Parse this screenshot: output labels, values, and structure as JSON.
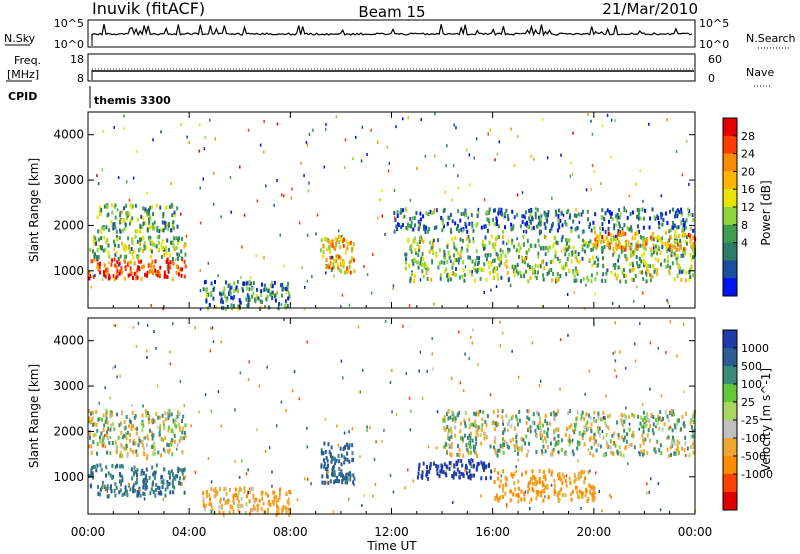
{
  "header": {
    "station": "Inuvik (fitACF)",
    "beam": "Beam 15",
    "date": "21/Mar/2010"
  },
  "panels": {
    "nsky_label": "N.Sky",
    "nsky_ticks": [
      "10^5",
      "10^0"
    ],
    "nsearch_label": "N.Search",
    "nsearch_ticks": [
      "10^5",
      "10^0"
    ],
    "freq_label_1": "Freq.",
    "freq_label_2": "[MHz]",
    "freq_ticks": [
      "18",
      "8"
    ],
    "nave_label": "Nave",
    "nave_ticks": [
      "60",
      "0"
    ],
    "cpid_label": "CPID",
    "cpid_value": "themis 3300"
  },
  "axes": {
    "ylabel": "Slant Range [km]",
    "yticks": [
      "4000",
      "3000",
      "2000",
      "1000"
    ],
    "xticks": [
      "00:00",
      "04:00",
      "08:00",
      "12:00",
      "16:00",
      "20:00",
      "00:00"
    ],
    "xlabel": "Time UT"
  },
  "colorbars": {
    "power": {
      "label": "Power [dB]",
      "ticks": [
        "28",
        "24",
        "20",
        "16",
        "12",
        "8",
        "4"
      ],
      "colors": [
        "#e40000",
        "#ff3b00",
        "#ff8c00",
        "#ffb400",
        "#e8e400",
        "#8ed43c",
        "#3e9d4f",
        "#2d7c67",
        "#1a4f9f",
        "#0014f0"
      ]
    },
    "velocity": {
      "label": "Velocity [m s^-1]",
      "ticks": [
        "1000",
        "500",
        "100",
        "25",
        "-25",
        "-100",
        "-500",
        "-1000"
      ],
      "colors": [
        "#1f3ca8",
        "#2b5d93",
        "#3a8a7a",
        "#62c83a",
        "#a8d860",
        "#c0c0c0",
        "#f0a830",
        "#ff8c00",
        "#ff4000",
        "#e00000"
      ]
    }
  },
  "chart_data": {
    "type": "heatmap",
    "title": "Inuvik (fitACF) Beam 15 21/Mar/2010",
    "xlabel": "Time UT",
    "ylabel": "Slant Range [km]",
    "x_range": [
      "00:00",
      "24:00"
    ],
    "ylim": [
      180,
      4500
    ],
    "panels": [
      {
        "name": "Power [dB]",
        "colorbar_range": [
          0,
          30
        ],
        "scatter_regions": [
          {
            "time": [
              "00:00",
              "03:50"
            ],
            "range_km": [
              850,
              1300
            ],
            "power_db": 28
          },
          {
            "time": [
              "00:00",
              "03:50"
            ],
            "range_km": [
              1300,
              1800
            ],
            "power_db": 14
          },
          {
            "time": [
              "00:20",
              "03:30"
            ],
            "range_km": [
              1900,
              2500
            ],
            "power_db": 12
          },
          {
            "time": [
              "04:30",
              "08:00"
            ],
            "range_km": [
              200,
              800
            ],
            "power_db": 10
          },
          {
            "time": [
              "09:10",
              "10:30"
            ],
            "range_km": [
              1000,
              1800
            ],
            "power_db": 20
          },
          {
            "time": [
              "12:00",
              "24:00"
            ],
            "range_km": [
              1900,
              2400
            ],
            "power_db": 8
          },
          {
            "time": [
              "12:30",
              "24:00"
            ],
            "range_km": [
              800,
              1800
            ],
            "power_db": 14
          },
          {
            "time": [
              "20:00",
              "24:00"
            ],
            "range_km": [
              1500,
              1900
            ],
            "power_db": 22
          }
        ]
      },
      {
        "name": "Velocity [m s^-1]",
        "colorbar_range": [
          -1000,
          1000
        ],
        "scatter_regions": [
          {
            "time": [
              "00:00",
              "03:50"
            ],
            "range_km": [
              600,
              1300
            ],
            "velocity": 300
          },
          {
            "time": [
              "00:00",
              "03:50"
            ],
            "range_km": [
              1500,
              2500
            ],
            "velocity": 0
          },
          {
            "time": [
              "04:30",
              "08:00"
            ],
            "range_km": [
              200,
              800
            ],
            "velocity": -200
          },
          {
            "time": [
              "09:10",
              "10:30"
            ],
            "range_km": [
              900,
              1800
            ],
            "velocity": 400
          },
          {
            "time": [
              "13:00",
              "16:00"
            ],
            "range_km": [
              1000,
              1400
            ],
            "velocity": 1000
          },
          {
            "time": [
              "16:00",
              "20:00"
            ],
            "range_km": [
              500,
              1200
            ],
            "velocity": -300
          },
          {
            "time": [
              "14:00",
              "24:00"
            ],
            "range_km": [
              1500,
              2500
            ],
            "velocity": 0
          }
        ]
      }
    ]
  }
}
